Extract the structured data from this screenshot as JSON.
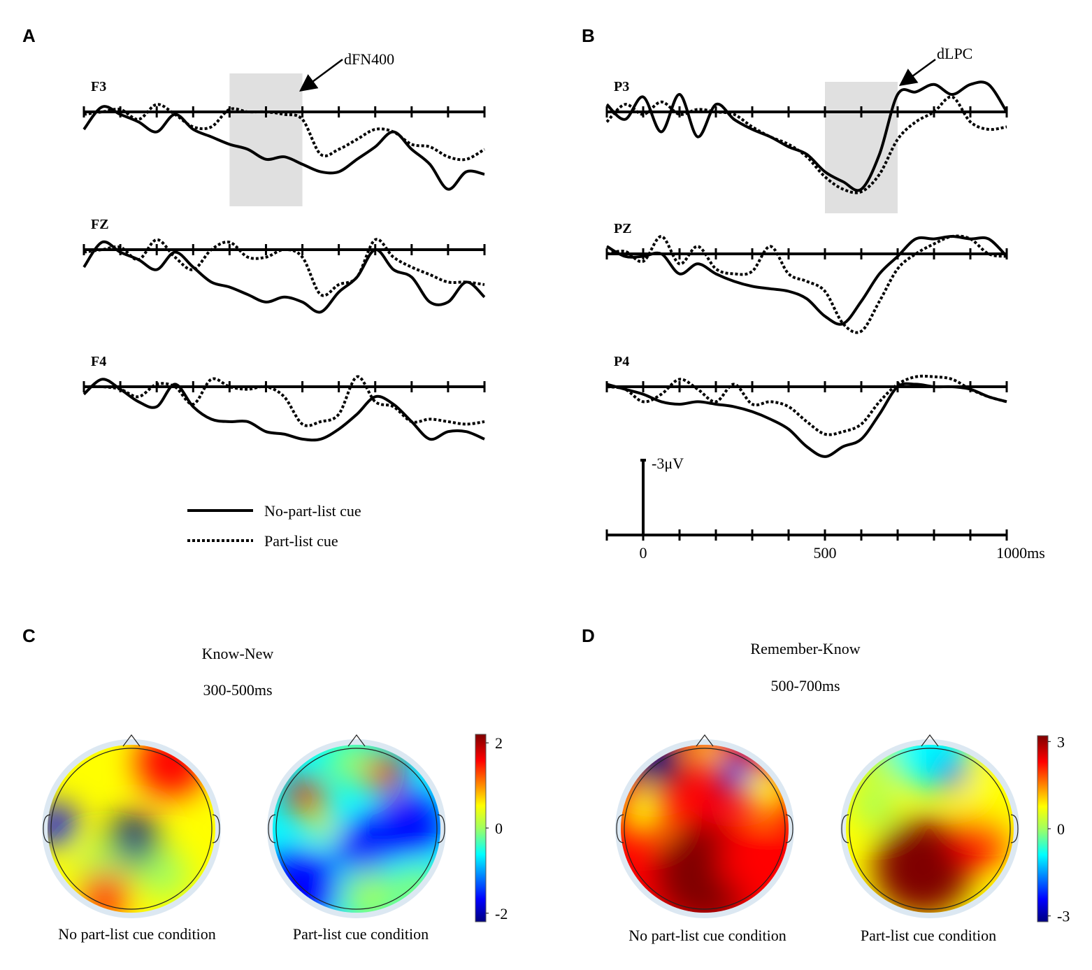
{
  "panels": {
    "A": {
      "letter": "A",
      "window": [
        300,
        500
      ],
      "annotation": "dFN400",
      "channels": [
        {
          "label": "F3",
          "solid": [
            0.7,
            -0.2,
            0.1,
            0.4,
            0.8,
            0.1,
            0.7,
            1.0,
            1.3,
            1.5,
            1.9,
            1.8,
            2.1,
            2.4,
            2.4,
            1.9,
            1.4,
            0.8,
            1.5,
            2.1,
            3.1,
            2.4,
            2.5
          ],
          "dashed": [
            0.1,
            0,
            -0.1,
            0.3,
            -0.3,
            0.1,
            0.6,
            0.6,
            -0.1,
            0,
            0,
            0.1,
            0.3,
            1.7,
            1.5,
            1.1,
            0.7,
            0.8,
            1.3,
            1.4,
            1.8,
            1.9,
            1.5
          ]
        },
        {
          "label": "FZ",
          "solid": [
            0.7,
            -0.3,
            0.1,
            0.4,
            0.8,
            0.1,
            0.7,
            1.3,
            1.5,
            1.8,
            2.1,
            1.9,
            2.1,
            2.5,
            1.7,
            1.1,
            0,
            0.8,
            1.1,
            2.1,
            2.1,
            1.3,
            1.9
          ],
          "dashed": [
            0.1,
            0,
            -0.1,
            0.4,
            -0.4,
            0.3,
            0.8,
            0,
            -0.3,
            0.3,
            0.3,
            0,
            0.3,
            1.8,
            1.4,
            1.1,
            -0.4,
            0.3,
            0.7,
            1.0,
            1.3,
            1.3,
            1.4
          ]
        },
        {
          "label": "F4",
          "solid": [
            0.3,
            -0.3,
            0.1,
            0.6,
            0.8,
            -0.1,
            0.8,
            1.3,
            1.4,
            1.4,
            1.8,
            1.9,
            2.1,
            2.1,
            1.7,
            1.1,
            0.4,
            0.7,
            1.4,
            2.1,
            1.8,
            1.8,
            2.1
          ],
          "dashed": [
            0,
            0,
            0.1,
            0.4,
            -0.1,
            0,
            0.7,
            -0.3,
            0,
            0.1,
            0,
            0.4,
            1.5,
            1.4,
            1.1,
            -0.4,
            0.6,
            0.8,
            1.4,
            1.3,
            1.4,
            1.5,
            1.4
          ]
        }
      ]
    },
    "B": {
      "letter": "B",
      "window": [
        500,
        700
      ],
      "annotation": "dLPC",
      "channels": [
        {
          "label": "P3",
          "solid": [
            -0.3,
            0.3,
            -0.6,
            0.8,
            -0.7,
            1.0,
            -0.3,
            0.3,
            0.7,
            1.0,
            1.4,
            1.7,
            2.4,
            2.8,
            3.1,
            1.7,
            -0.7,
            -0.8,
            -1.1,
            -0.7,
            -1.1,
            -1.1,
            0
          ],
          "dashed": [
            0.4,
            -0.3,
            0.1,
            -0.4,
            0.1,
            -0.1,
            0,
            0.1,
            0.6,
            1.0,
            1.3,
            1.8,
            2.6,
            3.1,
            3.2,
            2.5,
            1.1,
            0.4,
            0,
            -0.6,
            0.4,
            0.7,
            0.6
          ]
        },
        {
          "label": "PZ",
          "solid": [
            -0.3,
            0.1,
            0.1,
            0,
            0.8,
            0.4,
            0.8,
            1.1,
            1.3,
            1.4,
            1.5,
            1.8,
            2.5,
            2.8,
            1.9,
            0.8,
            0.1,
            -0.6,
            -0.6,
            -0.7,
            -0.6,
            -0.6,
            0.1
          ],
          "dashed": [
            0,
            -0.1,
            0.3,
            -0.7,
            0.4,
            -0.3,
            0.6,
            0.8,
            0.7,
            -0.3,
            0.8,
            1.1,
            1.5,
            2.8,
            3.1,
            1.9,
            0.6,
            0,
            -0.4,
            -0.7,
            -0.6,
            0,
            0.1
          ]
        },
        {
          "label": "P4",
          "solid": [
            -0.1,
            0.1,
            0.3,
            0.6,
            0.7,
            0.6,
            0.7,
            0.8,
            1.0,
            1.3,
            1.7,
            2.4,
            2.8,
            2.4,
            2.1,
            1.1,
            0,
            -0.1,
            0,
            0,
            0.1,
            0.4,
            0.6
          ],
          "dashed": [
            0,
            0.1,
            0.6,
            0.3,
            -0.3,
            0.1,
            0.6,
            -0.1,
            0.7,
            0.6,
            0.8,
            1.4,
            1.9,
            1.8,
            1.5,
            0.6,
            -0.1,
            -0.4,
            -0.4,
            -0.3,
            0.1,
            0.4,
            0.6
          ]
        }
      ]
    },
    "C": {
      "letter": "C",
      "title": "Know-New",
      "window": "300-500ms",
      "captions": [
        "No part-list cue condition",
        "Part-list cue condition"
      ],
      "clim": [
        -2.2,
        2.2
      ],
      "cticks": [
        2,
        0,
        -2
      ]
    },
    "D": {
      "letter": "D",
      "title": "Remember-Know",
      "window": "500-700ms",
      "captions": [
        "No part-list cue condition",
        "Part-list cue condition"
      ],
      "clim": [
        -3.2,
        3.2
      ],
      "cticks": [
        3,
        0,
        -3
      ]
    }
  },
  "times": [
    -100,
    -50,
    0,
    50,
    100,
    150,
    200,
    250,
    300,
    350,
    400,
    450,
    500,
    550,
    600,
    650,
    700,
    750,
    800,
    850,
    900,
    950,
    1000
  ],
  "xlim": [
    -100,
    1000
  ],
  "xticks": [
    -100,
    0,
    100,
    200,
    300,
    400,
    500,
    600,
    700,
    800,
    900,
    1000
  ],
  "xtick_labels": [
    {
      "value": 0,
      "label": "0"
    },
    {
      "value": 500,
      "label": "500"
    },
    {
      "value": 1000,
      "label": "1000ms"
    }
  ],
  "scale_bar": {
    "value": -3,
    "label": "-3μV"
  },
  "legend": [
    "No-part-list cue",
    "Part-list cue"
  ]
}
